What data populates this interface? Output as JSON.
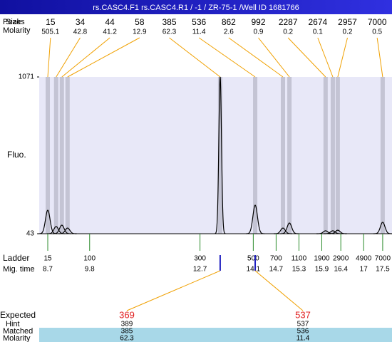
{
  "chart_data": {
    "type": "electropherogram",
    "header": "rs.CASC4.F1  rs.CASC4.R1  / -1  / ZR-75-1  /Well ID 1681766",
    "row_labels": {
      "peaks": "Peaks",
      "size": "Size",
      "molarity": "Molarity",
      "fluo": "Fluo.",
      "ladder": "Ladder",
      "mig_time": "Mig. time"
    },
    "ylim": [
      43,
      1071
    ],
    "yticks": [
      43,
      1071
    ],
    "xlim": [
      8.475,
      17.745
    ],
    "peaks": {
      "size": [
        15,
        34,
        44,
        58,
        385,
        536,
        862,
        992,
        2287,
        2674,
        2957,
        7000
      ],
      "molarity": [
        505.1,
        42.8,
        41.2,
        12.9,
        62.3,
        11.4,
        2.6,
        0.9,
        0.2,
        0.1,
        0.2,
        0.5
      ],
      "time": [
        8.7,
        8.92,
        9.07,
        9.22,
        13.23,
        14.15,
        14.88,
        15.05,
        16.0,
        16.19,
        16.32,
        17.5
      ],
      "height": [
        197,
        90,
        99,
        80,
        1071,
        230,
        80,
        113,
        62,
        62,
        66,
        118
      ]
    },
    "ladder": {
      "size": [
        15,
        100,
        300,
        500,
        700,
        1100,
        1900,
        2900,
        4900,
        7000
      ],
      "time": [
        8.7,
        9.8,
        12.7,
        14.1,
        14.7,
        15.3,
        15.9,
        16.4,
        17,
        17.5
      ]
    },
    "table": {
      "labels": {
        "expected": "Expected",
        "hint": "Hint",
        "matched": "Matched",
        "molarity": "Molarity"
      },
      "expected": [
        369,
        537
      ],
      "hint": [
        389,
        537
      ],
      "matched": [
        385,
        536
      ],
      "molarity": [
        62.3,
        11.4
      ]
    }
  }
}
